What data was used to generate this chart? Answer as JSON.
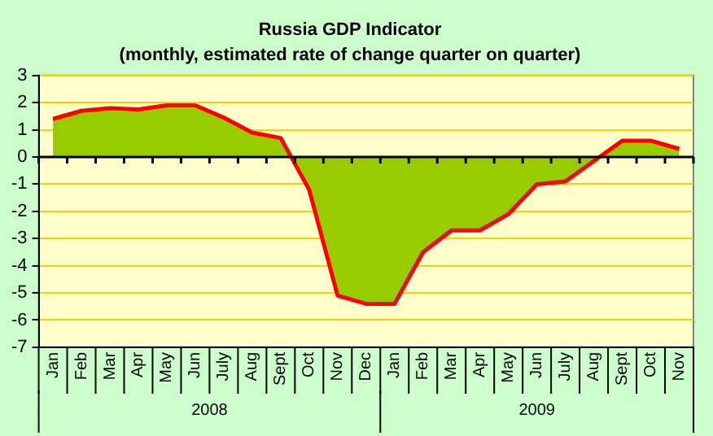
{
  "chart_data": {
    "type": "area",
    "title": "Russia GDP Indicator",
    "subtitle": "(monthly, estimated rate of change quarter on quarter)",
    "categories": [
      "Jan",
      "Feb",
      "Mar",
      "Apr",
      "May",
      "Jun",
      "July",
      "Aug",
      "Sept",
      "Oct",
      "Nov",
      "Dec",
      "Jan",
      "Feb",
      "Mar",
      "Apr",
      "May",
      "Jun",
      "July",
      "Aug",
      "Sept",
      "Oct",
      "Nov"
    ],
    "series": [
      {
        "color": "#99cc00",
        "values": [
          1.4,
          1.7,
          1.8,
          1.75,
          1.9,
          1.9,
          1.45,
          0.9,
          0.7,
          -1.2,
          -5.1,
          -5.4,
          -5.4,
          -3.5,
          -2.7,
          -2.7,
          -2.1,
          -1.0,
          -0.9,
          -0.15,
          0.6,
          0.6,
          0.3
        ]
      }
    ],
    "ylim": [
      -7,
      3
    ],
    "yticks": [
      -7,
      -6,
      -5,
      -4,
      -3,
      -2,
      -1,
      0,
      1,
      2,
      3
    ],
    "grid": "y",
    "legend": false,
    "ref_lines": [
      {
        "axis": "y",
        "value": 0,
        "color": "#000000"
      }
    ],
    "annotations": [
      "2008",
      "2009"
    ]
  }
}
